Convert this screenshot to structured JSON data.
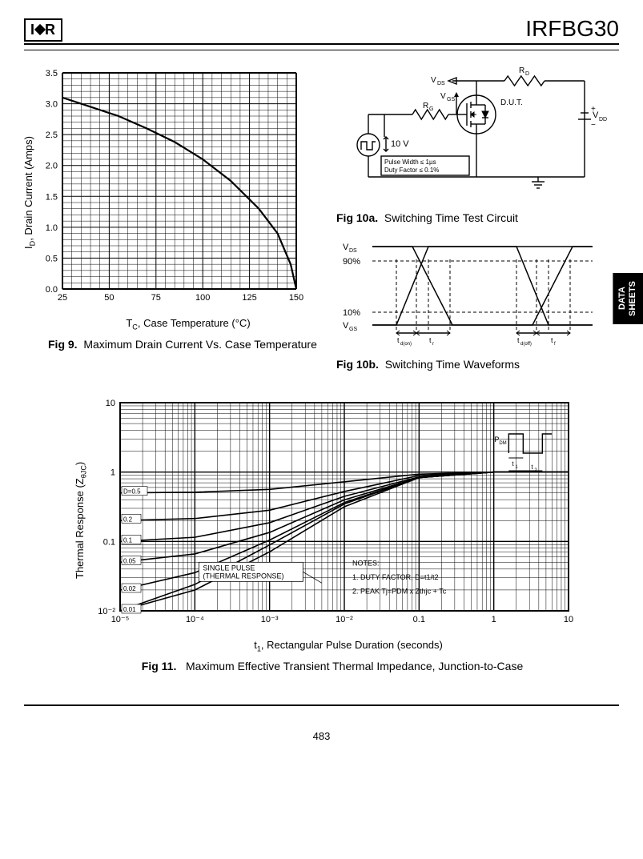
{
  "header": {
    "logo_left": "I",
    "logo_right": "R",
    "part_number": "IRFBG30"
  },
  "side_tab": {
    "line1": "DATA",
    "line2": "SHEETS"
  },
  "fig9": {
    "type": "line",
    "caption_bold": "Fig 9.",
    "caption_text": "Maximum Drain Current Vs. Case Temperature",
    "ylabel": "I",
    "ylabel_sub": "D",
    "ylabel_rest": ", Drain Current (Amps)",
    "xlabel": "T",
    "xlabel_sub": "C",
    "xlabel_rest": ", Case Temperature (°C)",
    "xlim": [
      25,
      150
    ],
    "ylim": [
      0.0,
      3.5
    ],
    "xtick_step": 25,
    "ytick_step": 0.5,
    "xticks": [
      "25",
      "50",
      "75",
      "100",
      "125",
      "150"
    ],
    "yticks": [
      "0.0",
      "0.5",
      "1.0",
      "1.5",
      "2.0",
      "2.5",
      "3.0",
      "3.5"
    ],
    "curve": [
      {
        "x": 25,
        "y": 3.1
      },
      {
        "x": 40,
        "y": 2.95
      },
      {
        "x": 55,
        "y": 2.8
      },
      {
        "x": 70,
        "y": 2.6
      },
      {
        "x": 85,
        "y": 2.38
      },
      {
        "x": 100,
        "y": 2.1
      },
      {
        "x": 115,
        "y": 1.75
      },
      {
        "x": 130,
        "y": 1.3
      },
      {
        "x": 140,
        "y": 0.9
      },
      {
        "x": 147,
        "y": 0.4
      },
      {
        "x": 150,
        "y": 0.0
      }
    ],
    "line_width": 2.2,
    "grid_color": "#000000",
    "background_color": "#ffffff",
    "tick_fontsize": 11,
    "label_fontsize": 13
  },
  "fig10a": {
    "caption_bold": "Fig 10a.",
    "caption_text": "Switching Time Test Circuit",
    "labels": {
      "vds": "V",
      "vds_sub": "DS",
      "rd": "R",
      "rd_sub": "D",
      "rg": "R",
      "rg_sub": "G",
      "vgs": "V",
      "vgs_sub": "GS",
      "dut": "D.U.T.",
      "vdd": "V",
      "vdd_sub": "DD",
      "pulse_v": "10 V",
      "pulse_note1": "Pulse Width ≤ 1µs",
      "pulse_note2": "Duty Factor ≤ 0.1%"
    },
    "line_color": "#000000",
    "label_fontsize": 10
  },
  "fig10b": {
    "caption_bold": "Fig 10b.",
    "caption_text": "Switching Time Waveforms",
    "labels": {
      "vds": "V",
      "vds_sub": "DS",
      "vgs": "V",
      "vgs_sub": "GS",
      "p90": "90%",
      "p10": "10%",
      "tdon": "t",
      "tdon_sub": "d(on)",
      "tr": "t",
      "tr_sub": "r",
      "tdoff": "t",
      "tdoff_sub": "d(off)",
      "tf": "t",
      "tf_sub": "f"
    },
    "line_color": "#000000"
  },
  "fig11": {
    "type": "line",
    "caption_bold": "Fig 11.",
    "caption_text": "Maximum Effective Transient Thermal Impedance, Junction-to-Case",
    "ylabel": "Thermal Response (Z",
    "ylabel_sub": "θJC",
    "ylabel_close": ")",
    "xlabel": "t",
    "xlabel_sub": "1",
    "xlabel_rest": ", Rectangular Pulse Duration (seconds)",
    "xlim_log": [
      -5,
      1
    ],
    "ylim_log": [
      -2,
      1
    ],
    "xticks": [
      "10⁻⁵",
      "10⁻⁴",
      "10⁻³",
      "10⁻²",
      "0.1",
      "1",
      "10"
    ],
    "yticks": [
      "10⁻²",
      "0.1",
      "1",
      "10"
    ],
    "d_labels": [
      "D=0.5",
      "0.2",
      "0.1",
      "0.05",
      "0.02",
      "0.01"
    ],
    "single_pulse_label1": "SINGLE PULSE",
    "single_pulse_label2": "(THERMAL RESPONSE)",
    "notes_title": "NOTES:",
    "note1": "1. DUTY FACTOR, D=t1/t2",
    "note2": "2. PEAK Tj=PDM x Zthjc + Tc",
    "inset": {
      "pdm": "P",
      "pdm_sub": "DM",
      "t1": "t",
      "t1_sub": "1",
      "t2": "t",
      "t2_sub": "2"
    },
    "curves": {
      "d05": [
        {
          "x": -5,
          "y": -0.3
        },
        {
          "x": -4,
          "y": -0.29
        },
        {
          "x": -3,
          "y": -0.25
        },
        {
          "x": -2,
          "y": -0.14
        },
        {
          "x": -1,
          "y": -0.03
        },
        {
          "x": 0,
          "y": 0.0
        },
        {
          "x": 1,
          "y": 0.0
        }
      ],
      "d02": [
        {
          "x": -5,
          "y": -0.7
        },
        {
          "x": -4,
          "y": -0.67
        },
        {
          "x": -3,
          "y": -0.55
        },
        {
          "x": -2,
          "y": -0.28
        },
        {
          "x": -1,
          "y": -0.05
        },
        {
          "x": 0,
          "y": 0.0
        },
        {
          "x": 1,
          "y": 0.0
        }
      ],
      "d01": [
        {
          "x": -5,
          "y": -1.0
        },
        {
          "x": -4,
          "y": -0.94
        },
        {
          "x": -3,
          "y": -0.73
        },
        {
          "x": -2,
          "y": -0.35
        },
        {
          "x": -1,
          "y": -0.07
        },
        {
          "x": 0,
          "y": 0.0
        },
        {
          "x": 1,
          "y": 0.0
        }
      ],
      "d005": [
        {
          "x": -5,
          "y": -1.3
        },
        {
          "x": -4,
          "y": -1.18
        },
        {
          "x": -3,
          "y": -0.87
        },
        {
          "x": -2,
          "y": -0.4
        },
        {
          "x": -1,
          "y": -0.08
        },
        {
          "x": 0,
          "y": 0.0
        },
        {
          "x": 1,
          "y": 0.0
        }
      ],
      "d002": [
        {
          "x": -5,
          "y": -1.7
        },
        {
          "x": -4,
          "y": -1.45
        },
        {
          "x": -3,
          "y": -0.98
        },
        {
          "x": -2,
          "y": -0.44
        },
        {
          "x": -1,
          "y": -0.08
        },
        {
          "x": 0,
          "y": 0.0
        },
        {
          "x": 1,
          "y": 0.0
        }
      ],
      "d001": [
        {
          "x": -5,
          "y": -2.0
        },
        {
          "x": -4,
          "y": -1.62
        },
        {
          "x": -3,
          "y": -1.05
        },
        {
          "x": -2,
          "y": -0.46
        },
        {
          "x": -1,
          "y": -0.08
        },
        {
          "x": 0,
          "y": 0.0
        },
        {
          "x": 1,
          "y": 0.0
        }
      ],
      "single": [
        {
          "x": -5,
          "y": -2.0
        },
        {
          "x": -4,
          "y": -1.7
        },
        {
          "x": -3,
          "y": -1.15
        },
        {
          "x": -2,
          "y": -0.5
        },
        {
          "x": -1,
          "y": -0.08
        },
        {
          "x": 0,
          "y": 0.0
        },
        {
          "x": 1,
          "y": 0.0
        }
      ]
    },
    "line_width": 1.6,
    "grid_color": "#000000",
    "tick_fontsize": 11
  },
  "page_number": "483"
}
